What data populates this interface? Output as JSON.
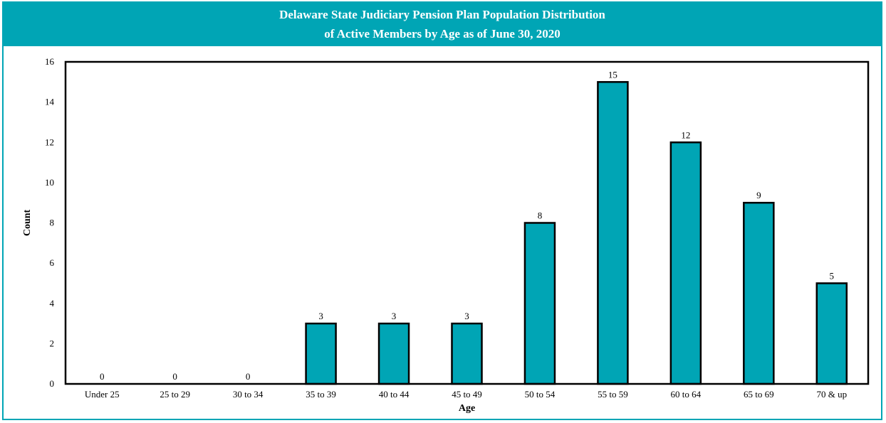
{
  "chart_data": {
    "type": "bar",
    "title": "Delaware State Judiciary Pension Plan Population Distribution",
    "subtitle": "of Active Members by Age as of June 30, 2020",
    "xlabel": "Age",
    "ylabel": "Count",
    "categories": [
      "Under 25",
      "25 to 29",
      "30 to 34",
      "35 to 39",
      "40 to 44",
      "45 to 49",
      "50 to 54",
      "55 to 59",
      "60 to 64",
      "65 to 69",
      "70 & up"
    ],
    "values": [
      0,
      0,
      0,
      3,
      3,
      3,
      8,
      15,
      12,
      9,
      5
    ],
    "ylim": [
      0,
      16
    ],
    "yticks": [
      0,
      2,
      4,
      6,
      8,
      10,
      12,
      14,
      16
    ],
    "grid": false,
    "legend": "none",
    "colors": {
      "bar": "#00a5b5",
      "bar_outline": "#000000",
      "header": "#00a5b5"
    }
  }
}
